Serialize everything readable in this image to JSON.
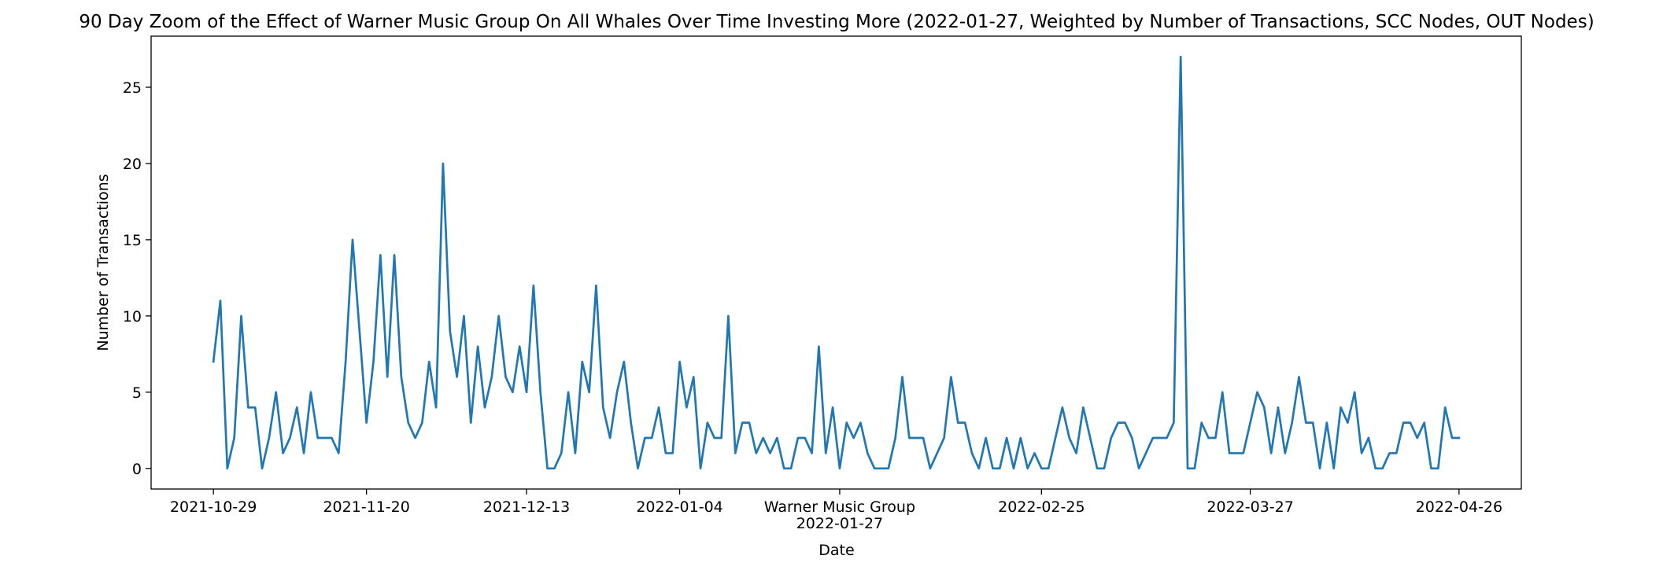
{
  "chart_data": {
    "type": "line",
    "title": "90 Day Zoom of the Effect of Warner Music Group On All Whales Over Time Investing More (2022-01-27, Weighted by Number of Transactions, SCC Nodes, OUT Nodes)",
    "xlabel": "Date",
    "ylabel": "Number of Transactions",
    "x_range": [
      "2021-10-29",
      "2022-04-26"
    ],
    "ylim": [
      -1.35,
      28.35
    ],
    "yticks": [
      0,
      5,
      10,
      15,
      20,
      25
    ],
    "xticks": [
      {
        "date": "2021-10-29",
        "label": "2021-10-29"
      },
      {
        "date": "2021-11-20",
        "label": "2021-11-20"
      },
      {
        "date": "2021-12-13",
        "label": "2021-12-13"
      },
      {
        "date": "2022-01-04",
        "label": "2022-01-04"
      },
      {
        "date": "2022-01-27",
        "label": "Warner Music Group\n2022-01-27"
      },
      {
        "date": "2022-02-25",
        "label": "2022-02-25"
      },
      {
        "date": "2022-03-27",
        "label": "2022-03-27"
      },
      {
        "date": "2022-04-26",
        "label": "2022-04-26"
      }
    ],
    "grid": false,
    "legend": "none",
    "color": "#1f77b4",
    "series": [
      {
        "x": [
          "2021-10-29",
          "2021-10-30",
          "2021-10-31",
          "2021-11-01",
          "2021-11-02",
          "2021-11-03",
          "2021-11-04",
          "2021-11-05",
          "2021-11-06",
          "2021-11-07",
          "2021-11-08",
          "2021-11-09",
          "2021-11-10",
          "2021-11-11",
          "2021-11-12",
          "2021-11-13",
          "2021-11-14",
          "2021-11-15",
          "2021-11-16",
          "2021-11-17",
          "2021-11-18",
          "2021-11-19",
          "2021-11-20",
          "2021-11-21",
          "2021-11-22",
          "2021-11-23",
          "2021-11-24",
          "2021-11-25",
          "2021-11-26",
          "2021-11-27",
          "2021-11-28",
          "2021-11-29",
          "2021-11-30",
          "2021-12-01",
          "2021-12-02",
          "2021-12-03",
          "2021-12-04",
          "2021-12-05",
          "2021-12-06",
          "2021-12-07",
          "2021-12-08",
          "2021-12-09",
          "2021-12-10",
          "2021-12-11",
          "2021-12-12",
          "2021-12-13",
          "2021-12-14",
          "2021-12-15",
          "2021-12-16",
          "2021-12-17",
          "2021-12-18",
          "2021-12-19",
          "2021-12-20",
          "2021-12-21",
          "2021-12-22",
          "2021-12-23",
          "2021-12-24",
          "2021-12-25",
          "2021-12-26",
          "2021-12-27",
          "2021-12-28",
          "2021-12-29",
          "2021-12-30",
          "2021-12-31",
          "2022-01-01",
          "2022-01-02",
          "2022-01-03",
          "2022-01-04",
          "2022-01-05",
          "2022-01-06",
          "2022-01-07",
          "2022-01-08",
          "2022-01-09",
          "2022-01-10",
          "2022-01-11",
          "2022-01-12",
          "2022-01-13",
          "2022-01-14",
          "2022-01-15",
          "2022-01-16",
          "2022-01-17",
          "2022-01-18",
          "2022-01-19",
          "2022-01-20",
          "2022-01-21",
          "2022-01-22",
          "2022-01-23",
          "2022-01-24",
          "2022-01-25",
          "2022-01-26",
          "2022-01-27",
          "2022-01-28",
          "2022-01-29",
          "2022-01-30",
          "2022-01-31",
          "2022-02-01",
          "2022-02-02",
          "2022-02-03",
          "2022-02-04",
          "2022-02-05",
          "2022-02-06",
          "2022-02-07",
          "2022-02-08",
          "2022-02-09",
          "2022-02-10",
          "2022-02-11",
          "2022-02-12",
          "2022-02-13",
          "2022-02-14",
          "2022-02-15",
          "2022-02-16",
          "2022-02-17",
          "2022-02-18",
          "2022-02-19",
          "2022-02-20",
          "2022-02-21",
          "2022-02-22",
          "2022-02-23",
          "2022-02-24",
          "2022-02-25",
          "2022-02-26",
          "2022-02-27",
          "2022-02-28",
          "2022-03-01",
          "2022-03-02",
          "2022-03-03",
          "2022-03-04",
          "2022-03-05",
          "2022-03-06",
          "2022-03-07",
          "2022-03-08",
          "2022-03-09",
          "2022-03-10",
          "2022-03-11",
          "2022-03-12",
          "2022-03-13",
          "2022-03-14",
          "2022-03-15",
          "2022-03-16",
          "2022-03-17",
          "2022-03-18",
          "2022-03-19",
          "2022-03-20",
          "2022-03-21",
          "2022-03-22",
          "2022-03-23",
          "2022-03-24",
          "2022-03-25",
          "2022-03-26",
          "2022-03-27",
          "2022-03-28",
          "2022-03-29",
          "2022-03-30",
          "2022-03-31",
          "2022-04-01",
          "2022-04-02",
          "2022-04-03",
          "2022-04-04",
          "2022-04-05",
          "2022-04-06",
          "2022-04-07",
          "2022-04-08",
          "2022-04-09",
          "2022-04-10",
          "2022-04-11",
          "2022-04-12",
          "2022-04-13",
          "2022-04-14",
          "2022-04-15",
          "2022-04-16",
          "2022-04-17",
          "2022-04-18",
          "2022-04-19",
          "2022-04-20",
          "2022-04-21",
          "2022-04-22",
          "2022-04-23",
          "2022-04-24",
          "2022-04-25",
          "2022-04-26"
        ],
        "values": [
          7,
          11,
          0,
          2,
          10,
          4,
          4,
          0,
          2,
          5,
          1,
          2,
          4,
          1,
          5,
          2,
          2,
          2,
          1,
          7,
          15,
          9,
          3,
          7,
          14,
          6,
          14,
          6,
          3,
          2,
          3,
          7,
          4,
          20,
          9,
          6,
          10,
          3,
          8,
          4,
          6,
          10,
          6,
          5,
          8,
          5,
          12,
          5,
          0,
          0,
          1,
          5,
          1,
          7,
          5,
          12,
          4,
          2,
          5,
          7,
          3,
          0,
          2,
          2,
          4,
          1,
          1,
          7,
          4,
          6,
          0,
          3,
          2,
          2,
          10,
          1,
          3,
          3,
          1,
          2,
          1,
          2,
          0,
          0,
          2,
          2,
          1,
          8,
          1,
          4,
          0,
          3,
          2,
          3,
          1,
          0,
          0,
          0,
          2,
          6,
          2,
          2,
          2,
          0,
          1,
          2,
          6,
          3,
          3,
          1,
          0,
          2,
          0,
          0,
          2,
          0,
          2,
          0,
          1,
          0,
          0,
          2,
          4,
          2,
          1,
          4,
          2,
          0,
          0,
          2,
          3,
          3,
          2,
          0,
          1,
          2,
          2,
          2,
          3,
          27,
          0,
          0,
          3,
          2,
          2,
          5,
          1,
          1,
          1,
          3,
          5,
          4,
          1,
          4,
          1,
          3,
          6,
          3,
          3,
          0,
          3,
          0,
          4,
          3,
          5,
          1,
          2,
          0,
          0,
          1,
          1,
          3,
          3,
          2,
          3,
          0,
          0,
          4,
          2,
          2
        ]
      }
    ]
  }
}
